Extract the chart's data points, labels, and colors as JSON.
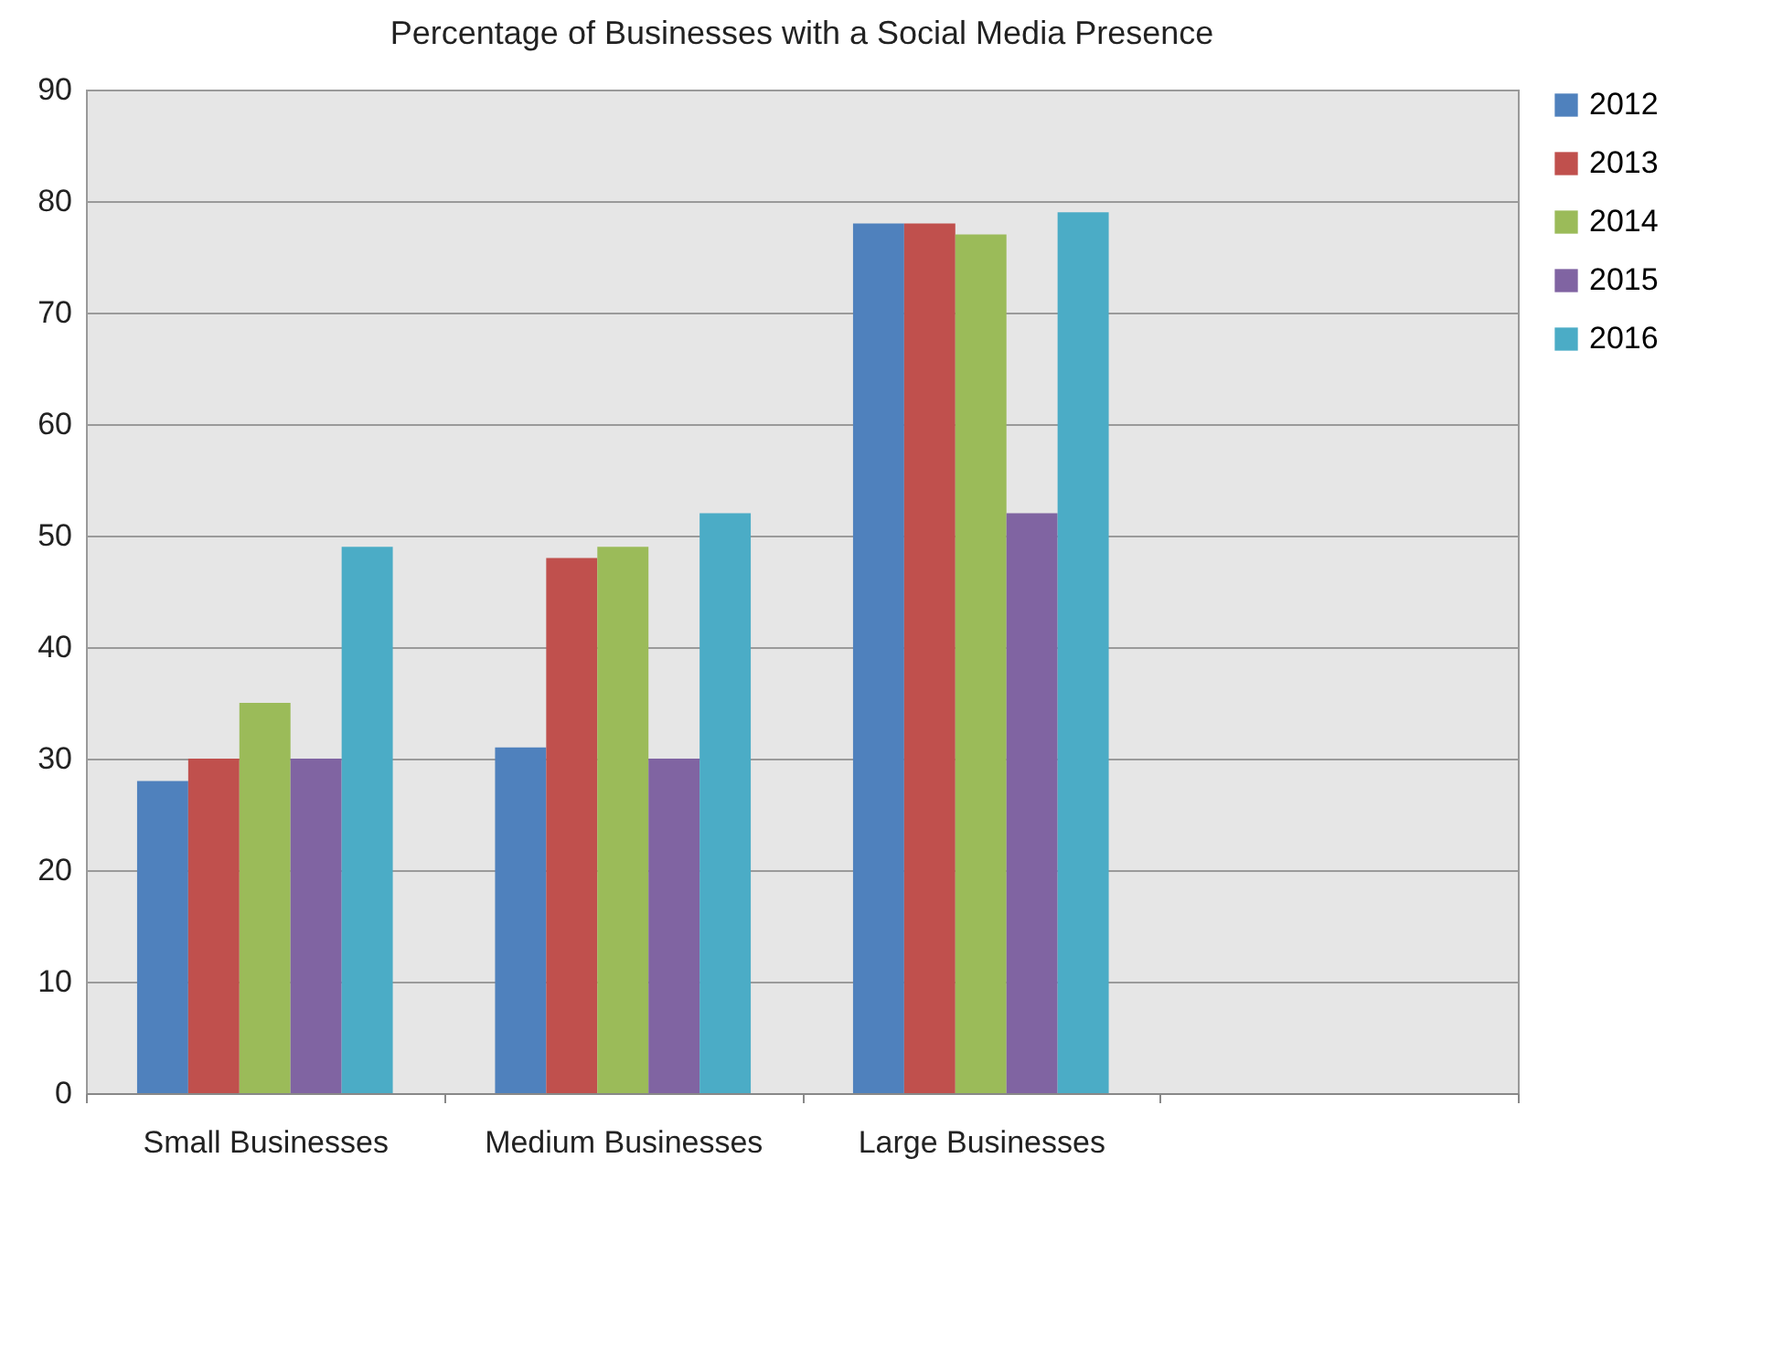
{
  "chart_data": {
    "type": "bar",
    "title": "Percentage of Businesses with a Social Media Presence",
    "categories": [
      "Small Businesses",
      "Medium Businesses",
      "Large Businesses",
      null
    ],
    "series": [
      {
        "name": "2012",
        "color": "#4f81bd",
        "values": [
          28,
          31,
          78,
          null
        ]
      },
      {
        "name": "2013",
        "color": "#c0504d",
        "values": [
          30,
          48,
          78,
          null
        ]
      },
      {
        "name": "2014",
        "color": "#9bbb59",
        "values": [
          35,
          49,
          77,
          null
        ]
      },
      {
        "name": "2015",
        "color": "#8064a2",
        "values": [
          30,
          30,
          52,
          null
        ]
      },
      {
        "name": "2016",
        "color": "#4bacc6",
        "values": [
          49,
          52,
          79,
          null
        ]
      }
    ],
    "ylim": [
      0,
      90
    ],
    "yticks": [
      0,
      10,
      20,
      30,
      40,
      50,
      60,
      70,
      80,
      90
    ],
    "grid": "y",
    "legend": "right"
  }
}
